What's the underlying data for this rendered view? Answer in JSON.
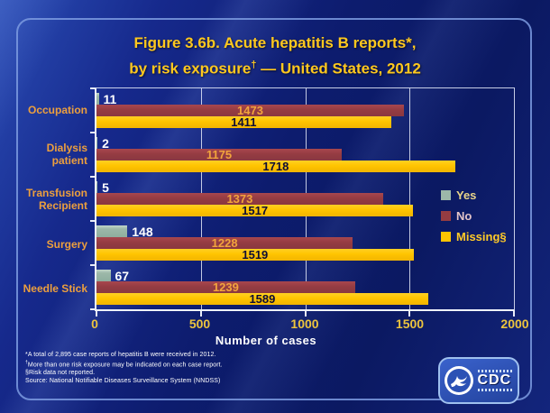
{
  "title": {
    "line1": "Figure 3.6b. Acute hepatitis B reports*,",
    "line2_prefix": "by risk exposure",
    "line2_sup": "†",
    "line2_suffix": " — United States, 2012"
  },
  "chart_data": {
    "type": "bar",
    "orientation": "horizontal",
    "categories": [
      "Occupation",
      "Dialysis patient",
      "Transfusion Recipient",
      "Surgery",
      "Needle Stick"
    ],
    "series": [
      {
        "name": "Yes",
        "color_class": "bar-yes",
        "color": "#9CB8A9",
        "label_style": "outside",
        "label_color": "#FFFFFF",
        "values": [
          11,
          2,
          5,
          148,
          67
        ]
      },
      {
        "name": "No",
        "color_class": "bar-no",
        "color": "#953C42",
        "label_style": "center",
        "label_color": "#F2A43C",
        "values": [
          1473,
          1175,
          1373,
          1228,
          1239
        ]
      },
      {
        "name": "Missing§",
        "color_class": "bar-missing",
        "color": "#FFC400",
        "label_style": "center",
        "label_color": "#0D0D35",
        "values": [
          1411,
          1718,
          1517,
          1519,
          1589
        ]
      }
    ],
    "xlabel": "Number  of cases",
    "xlim": [
      0,
      2000
    ],
    "xticks": [
      0,
      500,
      1000,
      1500,
      2000
    ],
    "grid": true,
    "legend_position": "right"
  },
  "legend": {
    "items": [
      {
        "label": "Yes",
        "swatch_color": "#9CB8A9",
        "text_color": "#E9D489"
      },
      {
        "label": "No",
        "swatch_color": "#953C42",
        "text_color": "#E3C4C8"
      },
      {
        "label": "Missing§",
        "swatch_color": "#FFC400",
        "text_color": "#FFCA28"
      }
    ]
  },
  "footnotes": [
    {
      "sup": "",
      "text": "*A total of 2,895 case reports of hepatitis B were received in 2012."
    },
    {
      "sup": "†",
      "text": "More than one risk exposure may be indicated on each case report."
    },
    {
      "sup": "",
      "text": "§Risk data not reported."
    },
    {
      "sup": "",
      "text": "Source: National Notifiable Diseases Surveillance System (NNDSS)"
    }
  ],
  "logo": {
    "text": "CDC"
  }
}
